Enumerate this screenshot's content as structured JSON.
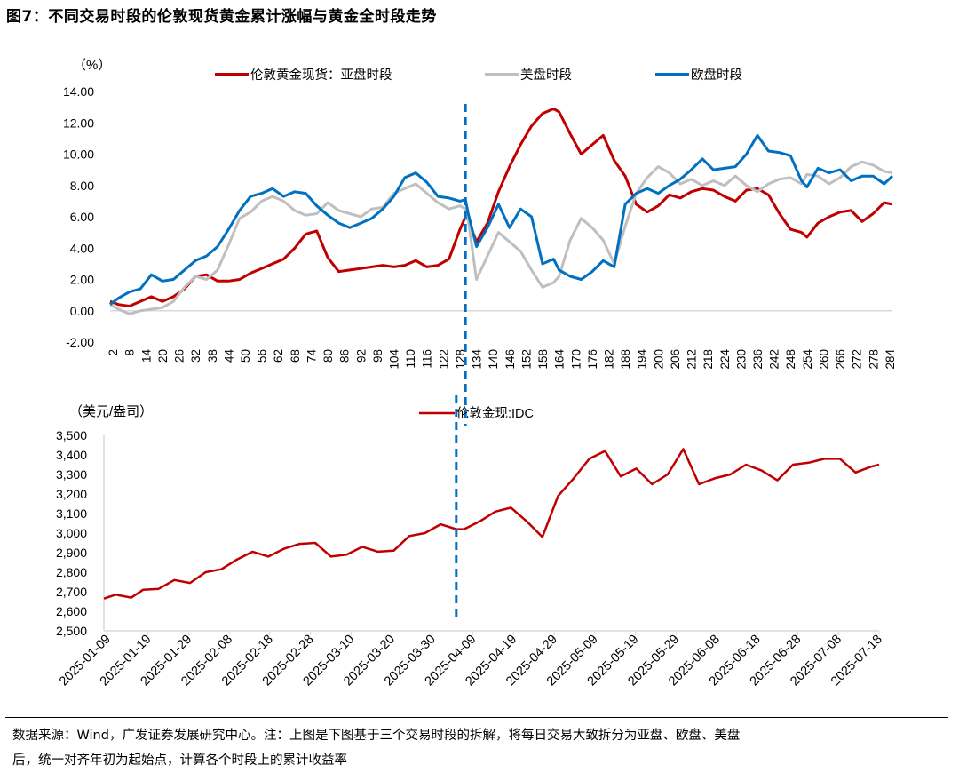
{
  "figure_title": "图7：不同交易时段的伦敦现货黄金累计涨幅与黄金全时段走势",
  "footer_line1": "数据来源：Wind，广发证券发展研究中心。注：上图是下图基于三个交易时段的拆解，将每日交易大致拆分为亚盘、欧盘、美盘",
  "footer_line2": "后，统一对齐年初为起始点，计算各个时段上的累计收益率",
  "colors": {
    "asia": "#C00000",
    "us": "#BFBFBF",
    "europe": "#0070C0",
    "gold": "#C00000",
    "divider": "#0070C0",
    "axis": "#D9D9D9"
  },
  "chart_data": [
    {
      "type": "line",
      "title": "",
      "ylabel": "（%）",
      "ylim": [
        -2,
        14
      ],
      "yticks": [
        "14.00",
        "12.00",
        "10.00",
        "8.00",
        "6.00",
        "4.00",
        "2.00",
        "0.00",
        "-2.00"
      ],
      "xticks": [
        2,
        8,
        14,
        20,
        26,
        32,
        38,
        44,
        50,
        56,
        62,
        68,
        74,
        80,
        86,
        92,
        98,
        104,
        110,
        116,
        122,
        128,
        134,
        140,
        146,
        152,
        158,
        164,
        170,
        176,
        182,
        188,
        194,
        200,
        206,
        212,
        218,
        224,
        230,
        236,
        242,
        248,
        254,
        260,
        266,
        272,
        278,
        284
      ],
      "xlim": [
        1,
        285
      ],
      "divider_x": 130,
      "series": [
        {
          "name": "伦敦黄金现货：亚盘时段",
          "color": "#C00000",
          "x": [
            1,
            4,
            8,
            12,
            16,
            20,
            24,
            28,
            32,
            36,
            40,
            44,
            48,
            52,
            56,
            60,
            64,
            68,
            72,
            76,
            80,
            84,
            88,
            92,
            96,
            100,
            104,
            108,
            112,
            116,
            120,
            124,
            128,
            130,
            131,
            134,
            138,
            142,
            146,
            150,
            154,
            158,
            162,
            164,
            168,
            172,
            176,
            180,
            184,
            188,
            192,
            196,
            200,
            204,
            208,
            212,
            216,
            220,
            224,
            228,
            232,
            236,
            240,
            244,
            248,
            252,
            254,
            258,
            262,
            266,
            270,
            274,
            278,
            282,
            285
          ],
          "values": [
            0.6,
            0.4,
            0.3,
            0.6,
            0.9,
            0.6,
            0.9,
            1.4,
            2.2,
            2.3,
            1.9,
            1.9,
            2.0,
            2.4,
            2.7,
            3.0,
            3.3,
            4.0,
            4.9,
            5.1,
            3.4,
            2.5,
            2.6,
            2.7,
            2.8,
            2.9,
            2.8,
            2.9,
            3.2,
            2.8,
            2.9,
            3.3,
            5.2,
            6.0,
            5.8,
            4.4,
            5.6,
            7.6,
            9.2,
            10.6,
            11.8,
            12.6,
            12.9,
            12.7,
            11.3,
            10.0,
            10.6,
            11.2,
            9.6,
            8.6,
            6.8,
            6.3,
            6.7,
            7.4,
            7.2,
            7.6,
            7.8,
            7.7,
            7.3,
            7.0,
            7.7,
            7.8,
            7.4,
            6.2,
            5.2,
            5.0,
            4.7,
            5.6,
            6.0,
            6.3,
            6.4,
            5.7,
            6.2,
            6.9,
            6.8
          ]
        },
        {
          "name": "美盘时段",
          "color": "#BFBFBF",
          "x": [
            1,
            4,
            8,
            12,
            16,
            20,
            24,
            28,
            32,
            36,
            40,
            44,
            48,
            52,
            56,
            60,
            64,
            68,
            72,
            76,
            80,
            84,
            88,
            92,
            96,
            100,
            104,
            108,
            112,
            116,
            120,
            124,
            128,
            130,
            131,
            134,
            138,
            142,
            146,
            150,
            154,
            158,
            162,
            164,
            168,
            172,
            176,
            180,
            184,
            188,
            192,
            196,
            200,
            204,
            208,
            212,
            216,
            220,
            224,
            228,
            232,
            236,
            240,
            244,
            248,
            252,
            254,
            258,
            262,
            266,
            270,
            274,
            278,
            282,
            285
          ],
          "values": [
            0.4,
            0.1,
            -0.2,
            0.0,
            0.1,
            0.2,
            0.6,
            1.5,
            2.2,
            2.0,
            2.6,
            4.2,
            5.9,
            6.3,
            7.0,
            7.3,
            7.0,
            6.4,
            6.1,
            6.2,
            6.9,
            6.4,
            6.2,
            6.0,
            6.5,
            6.6,
            7.5,
            7.8,
            8.1,
            7.5,
            6.9,
            6.5,
            6.7,
            6.5,
            5.8,
            2.0,
            3.5,
            5.0,
            4.4,
            3.8,
            2.6,
            1.5,
            1.8,
            2.2,
            4.5,
            5.9,
            5.3,
            4.5,
            3.0,
            5.4,
            7.5,
            8.5,
            9.2,
            8.8,
            8.1,
            8.4,
            8.0,
            8.3,
            8.0,
            8.6,
            8.0,
            7.6,
            8.1,
            8.4,
            8.5,
            8.1,
            8.7,
            8.6,
            8.1,
            8.5,
            9.2,
            9.5,
            9.3,
            8.9,
            8.8
          ]
        },
        {
          "name": "欧盘时段",
          "color": "#0070C0",
          "x": [
            1,
            4,
            8,
            12,
            16,
            20,
            24,
            28,
            32,
            36,
            40,
            44,
            48,
            52,
            56,
            60,
            64,
            68,
            72,
            76,
            80,
            84,
            88,
            92,
            96,
            100,
            104,
            108,
            112,
            116,
            120,
            124,
            128,
            130,
            131,
            134,
            138,
            142,
            146,
            150,
            154,
            158,
            162,
            164,
            168,
            172,
            176,
            180,
            184,
            188,
            192,
            196,
            200,
            204,
            208,
            212,
            216,
            220,
            224,
            228,
            232,
            236,
            240,
            244,
            248,
            252,
            254,
            258,
            262,
            266,
            270,
            274,
            278,
            282,
            285
          ],
          "values": [
            0.4,
            0.8,
            1.2,
            1.4,
            2.3,
            1.9,
            2.0,
            2.6,
            3.2,
            3.5,
            4.1,
            5.2,
            6.4,
            7.3,
            7.5,
            7.8,
            7.3,
            7.6,
            7.5,
            6.7,
            6.1,
            5.6,
            5.3,
            5.6,
            5.9,
            6.5,
            7.3,
            8.5,
            8.8,
            8.2,
            7.3,
            7.2,
            7.0,
            7.1,
            6.2,
            4.1,
            5.3,
            6.8,
            5.3,
            6.5,
            6.0,
            3.0,
            3.3,
            2.6,
            2.2,
            2.0,
            2.5,
            3.2,
            2.8,
            6.8,
            7.5,
            7.8,
            7.5,
            8.0,
            8.4,
            9.0,
            9.7,
            9.0,
            9.1,
            9.2,
            10.0,
            11.2,
            10.2,
            10.1,
            9.9,
            8.3,
            7.9,
            9.1,
            8.8,
            9.0,
            8.3,
            8.6,
            8.6,
            8.1,
            8.6
          ]
        }
      ]
    },
    {
      "type": "line",
      "title": "",
      "ylabel": "（美元/盎司）",
      "ylim": [
        2500,
        3500
      ],
      "yticks": [
        "3,500",
        "3,400",
        "3,300",
        "3,200",
        "3,100",
        "3,000",
        "2,900",
        "2,800",
        "2,700",
        "2,600",
        "2,500"
      ],
      "xlabels": [
        "2025-01-09",
        "2025-01-19",
        "2025-01-29",
        "2025-02-08",
        "2025-02-18",
        "2025-02-28",
        "2025-03-10",
        "2025-03-20",
        "2025-03-30",
        "2025-04-09",
        "2025-04-19",
        "2025-04-29",
        "2025-05-09",
        "2025-05-19",
        "2025-05-29",
        "2025-06-08",
        "2025-06-18",
        "2025-06-28",
        "2025-07-08",
        "2025-07-18"
      ],
      "xlim": [
        0,
        198
      ],
      "divider_x": 90,
      "series": [
        {
          "name": "伦敦金现:IDC",
          "color": "#C00000",
          "x": [
            0,
            3,
            7,
            10,
            14,
            18,
            22,
            26,
            30,
            34,
            38,
            42,
            46,
            50,
            54,
            58,
            62,
            66,
            70,
            74,
            78,
            82,
            86,
            90,
            92,
            96,
            100,
            104,
            108,
            112,
            116,
            120,
            124,
            128,
            132,
            136,
            140,
            144,
            148,
            152,
            156,
            160,
            164,
            168,
            172,
            176,
            180,
            184,
            188,
            192,
            196,
            198
          ],
          "values": [
            2665,
            2685,
            2670,
            2710,
            2715,
            2760,
            2745,
            2800,
            2815,
            2865,
            2905,
            2880,
            2920,
            2945,
            2950,
            2880,
            2890,
            2930,
            2905,
            2910,
            2985,
            3000,
            3045,
            3020,
            3020,
            3060,
            3110,
            3130,
            3060,
            2980,
            3190,
            3280,
            3380,
            3420,
            3290,
            3330,
            3250,
            3300,
            3430,
            3250,
            3280,
            3300,
            3350,
            3320,
            3270,
            3350,
            3360,
            3380,
            3380,
            3310,
            3340,
            3350
          ]
        }
      ]
    }
  ]
}
